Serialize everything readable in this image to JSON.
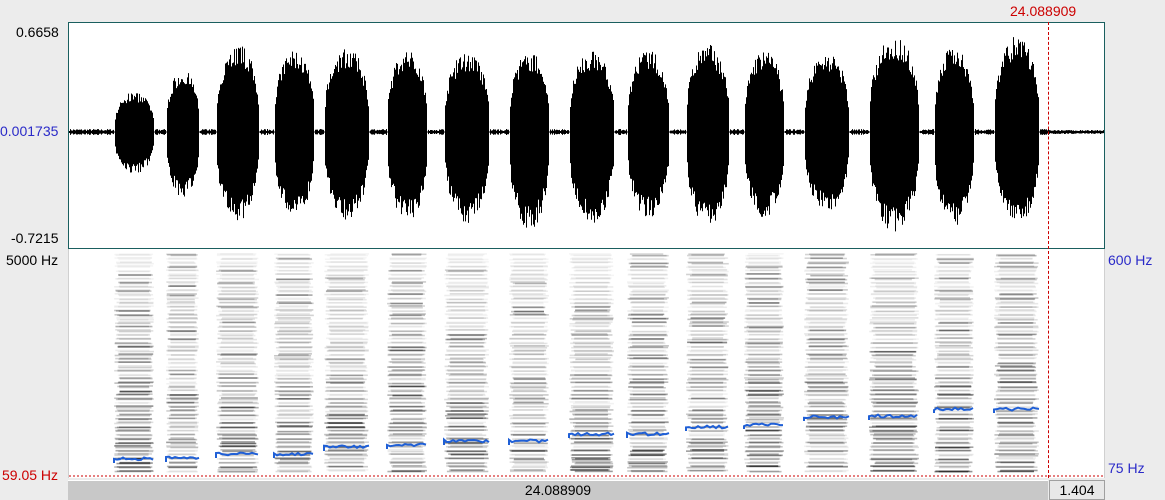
{
  "colors": {
    "cursor": "#cc0000",
    "pitch": "#1f5fd6",
    "wave": "#000000",
    "axis_blue": "#2a2ac8"
  },
  "waveform": {
    "max_label": "0.6658",
    "zero_label": "0.001735",
    "min_label": "-0.7215"
  },
  "spectrogram": {
    "top_freq_label": "5000 Hz",
    "bottom_freq_label": "59.05 Hz",
    "pitch_top_label": "600 Hz",
    "pitch_bottom_label": "75 Hz"
  },
  "cursor": {
    "time_label": "24.088909"
  },
  "time_bar": {
    "cursor_time": "24.088909",
    "window_duration": "1.404"
  }
}
